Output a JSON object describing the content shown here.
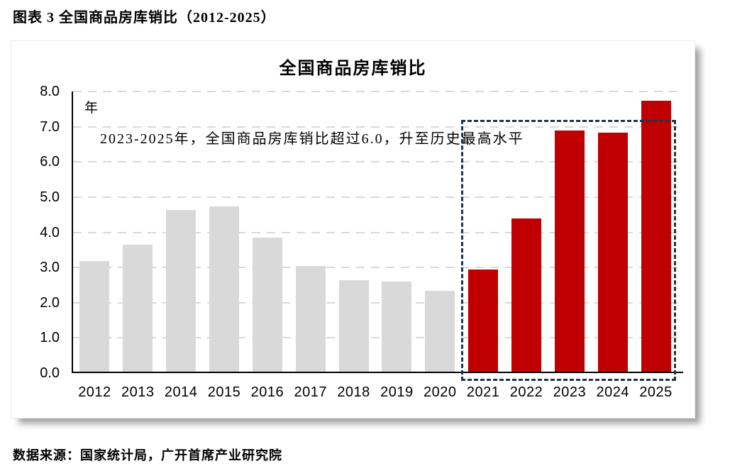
{
  "page": {
    "title": "图表 3 全国商品房库销比（2012-2025）",
    "source": "数据来源：国家统计局，广开首席产业研究院"
  },
  "chart_data": {
    "type": "bar",
    "title": "全国商品房库销比",
    "unit_label": "年",
    "annotation": "2023-2025年，全国商品房库销比超过6.0，升至历史最高水平",
    "categories": [
      "2012",
      "2013",
      "2014",
      "2015",
      "2016",
      "2017",
      "2018",
      "2019",
      "2020",
      "2021",
      "2022",
      "2023",
      "2024",
      "2025"
    ],
    "values": [
      3.15,
      3.6,
      4.6,
      4.7,
      3.8,
      3.0,
      2.6,
      2.55,
      2.3,
      2.9,
      4.35,
      6.85,
      6.8,
      7.7
    ],
    "ylim": [
      0.0,
      8.0
    ],
    "ytick_step": 1.0,
    "ytick_labels": [
      "0.0",
      "1.0",
      "2.0",
      "3.0",
      "4.0",
      "5.0",
      "6.0",
      "7.0",
      "8.0"
    ],
    "grid": true,
    "legend": "none",
    "highlight": {
      "from_category": "2021",
      "to_category": "2025",
      "box_top_value": 7.2
    },
    "colors": {
      "bar_default": "#d9d9d9",
      "bar_highlight": "#c00000",
      "gridline": "#d9d9d9",
      "axis": "#000000",
      "highlight_box": "#1b3647",
      "text": "#000000"
    }
  }
}
